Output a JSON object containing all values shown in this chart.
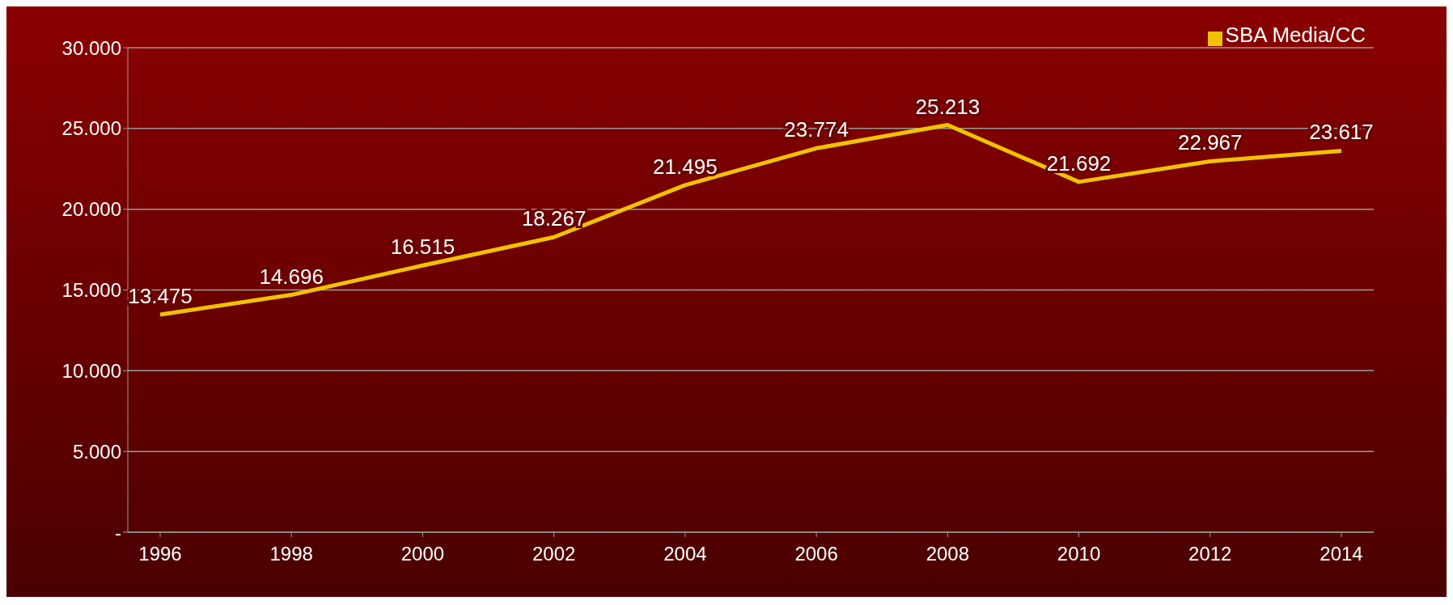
{
  "chart_data": {
    "type": "line",
    "categories": [
      "1996",
      "1998",
      "2000",
      "2002",
      "2004",
      "2006",
      "2008",
      "2010",
      "2012",
      "2014"
    ],
    "series": [
      {
        "name": "SBA Media/CC",
        "color": "#f2c200",
        "values": [
          13475,
          14696,
          16515,
          18267,
          21495,
          23774,
          25213,
          21692,
          22967,
          23617
        ],
        "value_labels": [
          "13.475",
          "14.696",
          "16.515",
          "18.267",
          "21.495",
          "23.774",
          "25.213",
          "21.692",
          "22.967",
          "23.617"
        ]
      }
    ],
    "ylim": [
      0,
      30000
    ],
    "yticks": [
      {
        "value": 0,
        "label": "-"
      },
      {
        "value": 5000,
        "label": "5.000"
      },
      {
        "value": 10000,
        "label": "10.000"
      },
      {
        "value": 15000,
        "label": "15.000"
      },
      {
        "value": 20000,
        "label": "20.000"
      },
      {
        "value": 25000,
        "label": "25.000"
      },
      {
        "value": 30000,
        "label": "30.000"
      }
    ],
    "grid": "y",
    "legend": "top right",
    "marker": "none",
    "line_style": "solid"
  }
}
